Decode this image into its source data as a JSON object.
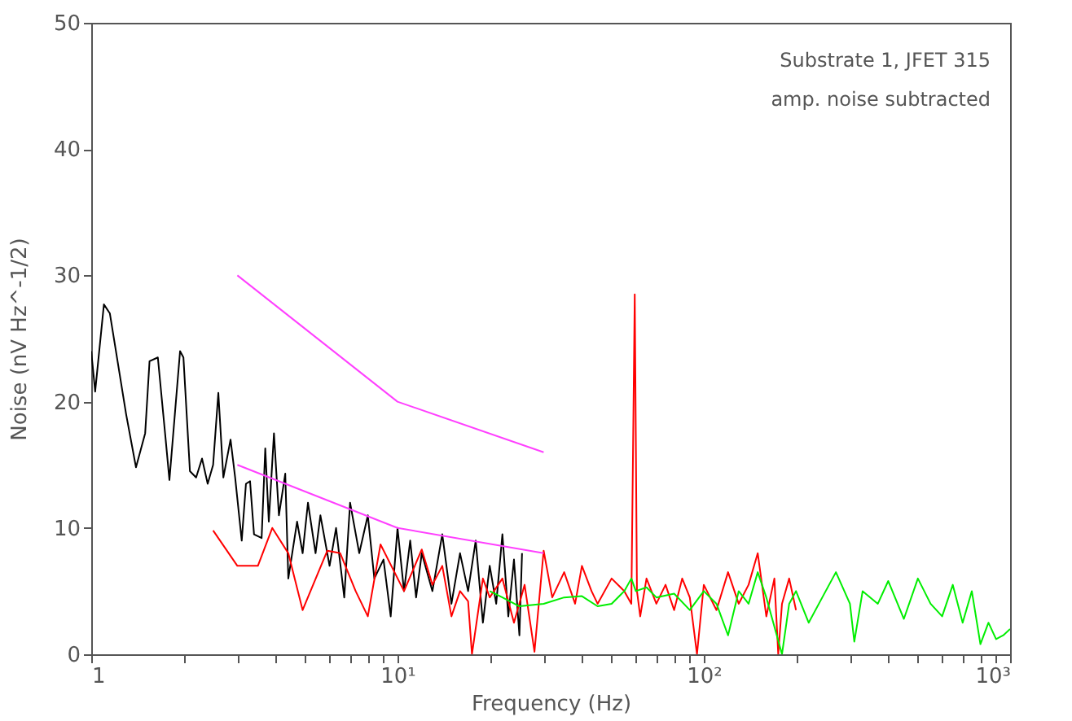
{
  "chart_data": {
    "type": "line",
    "xlabel": "Frequency (Hz)",
    "ylabel": "Noise (nV Hz^-1/2)",
    "log": "x",
    "xlim": [
      1,
      1000
    ],
    "ylim": [
      0,
      50
    ],
    "xticks": [
      1,
      {
        "value": 2,
        "label": null
      },
      {
        "value": 3,
        "label": null
      },
      {
        "value": 4,
        "label": null
      },
      {
        "value": 5,
        "label": null
      },
      {
        "value": 6,
        "label": null
      },
      {
        "value": 7,
        "label": null
      },
      {
        "value": 8,
        "label": null
      },
      {
        "value": 9,
        "label": null
      },
      {
        "value": 10,
        "label": "10¹"
      },
      {
        "value": 20,
        "label": null
      },
      {
        "value": 30,
        "label": null
      },
      {
        "value": 40,
        "label": null
      },
      {
        "value": 50,
        "label": null
      },
      {
        "value": 60,
        "label": null
      },
      {
        "value": 70,
        "label": null
      },
      {
        "value": 80,
        "label": null
      },
      {
        "value": 90,
        "label": null
      },
      {
        "value": 100,
        "label": "10²"
      },
      {
        "value": 200,
        "label": null
      },
      {
        "value": 300,
        "label": null
      },
      {
        "value": 400,
        "label": null
      },
      {
        "value": 500,
        "label": null
      },
      {
        "value": 600,
        "label": null
      },
      {
        "value": 700,
        "label": null
      },
      {
        "value": 800,
        "label": null
      },
      {
        "value": 900,
        "label": null
      },
      {
        "value": 1000,
        "label": "10³"
      }
    ],
    "yticks": [
      0,
      10,
      20,
      30,
      40,
      50
    ],
    "grid": false,
    "legend": false,
    "line_style": "solid",
    "marker": "none",
    "annotations": [
      "Substrate 1, JFET 315",
      "amp. noise subtracted"
    ],
    "series": [
      {
        "color": "#000000",
        "x": [
          1,
          1.03,
          1.1,
          1.15,
          1.3,
          1.4,
          1.5,
          1.55,
          1.65,
          1.75,
          1.8,
          1.95,
          2.0,
          2.1,
          2.2,
          2.3,
          2.4,
          2.5,
          2.6,
          2.7,
          2.85,
          2.95,
          3.1,
          3.2,
          3.3,
          3.4,
          3.6,
          3.7,
          3.8,
          3.95,
          4.1,
          4.3,
          4.4,
          4.7,
          4.9,
          5.1,
          5.4,
          5.6,
          6,
          6.3,
          6.7,
          7,
          7.5,
          8,
          8.4,
          9,
          9.5,
          10,
          10.5,
          11,
          11.5,
          12,
          13,
          14,
          15,
          16,
          17,
          18,
          19,
          20,
          21,
          22,
          23,
          24,
          25,
          25.5
        ],
        "values": [
          24,
          20.8,
          27.7,
          27,
          19,
          14.8,
          17.5,
          23.2,
          23.5,
          17,
          13.8,
          24,
          23.5,
          14.5,
          14,
          15.5,
          13.5,
          15,
          20.7,
          14,
          17,
          14,
          9,
          13.5,
          13.7,
          9.5,
          9.2,
          16.3,
          10.5,
          17.5,
          11,
          14.3,
          6,
          10.5,
          8,
          12,
          8,
          11,
          7,
          10,
          4.5,
          12,
          8,
          11,
          6,
          7.5,
          3,
          10,
          5,
          9,
          4.5,
          8,
          5,
          9.5,
          4,
          8,
          5,
          9,
          2.5,
          7,
          4,
          9.5,
          3,
          7.5,
          1.5,
          8
        ]
      },
      {
        "color": "#ff0000",
        "x": [
          2.5,
          3,
          3.5,
          3.9,
          4.4,
          4.9,
          5.9,
          6.5,
          7.3,
          8,
          8.8,
          10.5,
          12,
          13,
          14,
          15,
          16,
          17,
          17.5,
          19,
          20,
          22,
          24,
          26,
          28,
          30,
          32,
          35,
          38,
          40,
          43,
          45,
          50,
          55,
          58,
          59.5,
          60.5,
          62,
          65,
          70,
          75,
          80,
          85,
          90,
          95,
          100,
          110,
          120,
          130,
          140,
          150,
          160,
          170,
          175,
          180,
          190,
          200
        ],
        "values": [
          9.8,
          7,
          7,
          10,
          8,
          3.5,
          8.2,
          8,
          5,
          3,
          8.7,
          5,
          8.3,
          5.5,
          7,
          3,
          5,
          4.2,
          0,
          6,
          4.5,
          6,
          2.5,
          5.5,
          0.2,
          8.2,
          4.5,
          6.5,
          4,
          7,
          5,
          4,
          6,
          5,
          4,
          28.5,
          5,
          3,
          6,
          4,
          5.5,
          3.5,
          6,
          4.5,
          0,
          5.5,
          3.5,
          6.5,
          4,
          5.5,
          8,
          3,
          6,
          0,
          4,
          6,
          3.5
        ]
      },
      {
        "color": "#00ee00",
        "x": [
          20,
          22,
          25,
          30,
          35,
          40,
          45,
          50,
          55,
          58,
          60,
          65,
          70,
          80,
          90,
          100,
          110,
          120,
          130,
          140,
          150,
          160,
          180,
          190,
          200,
          220,
          250,
          270,
          300,
          310,
          330,
          370,
          400,
          450,
          500,
          550,
          600,
          650,
          700,
          750,
          800,
          850,
          900,
          950,
          1000
        ],
        "values": [
          5,
          4.5,
          3.8,
          4,
          4.5,
          4.6,
          3.8,
          4,
          5,
          6,
          5,
          5.3,
          4.5,
          4.8,
          3.5,
          5,
          4,
          1.5,
          5,
          4,
          6.5,
          4.5,
          0,
          4,
          5,
          2.5,
          5,
          6.5,
          4,
          1,
          5,
          4,
          5.8,
          2.8,
          6,
          4,
          3,
          5.5,
          2.5,
          5,
          0.8,
          2.5,
          1.2,
          1.5,
          2
        ]
      },
      {
        "color": "#ff40ff",
        "x": [
          3,
          10,
          30
        ],
        "values": [
          30,
          20,
          16
        ]
      },
      {
        "color": "#ff40ff",
        "x": [
          3,
          10,
          30
        ],
        "values": [
          15,
          10,
          8
        ]
      }
    ]
  }
}
